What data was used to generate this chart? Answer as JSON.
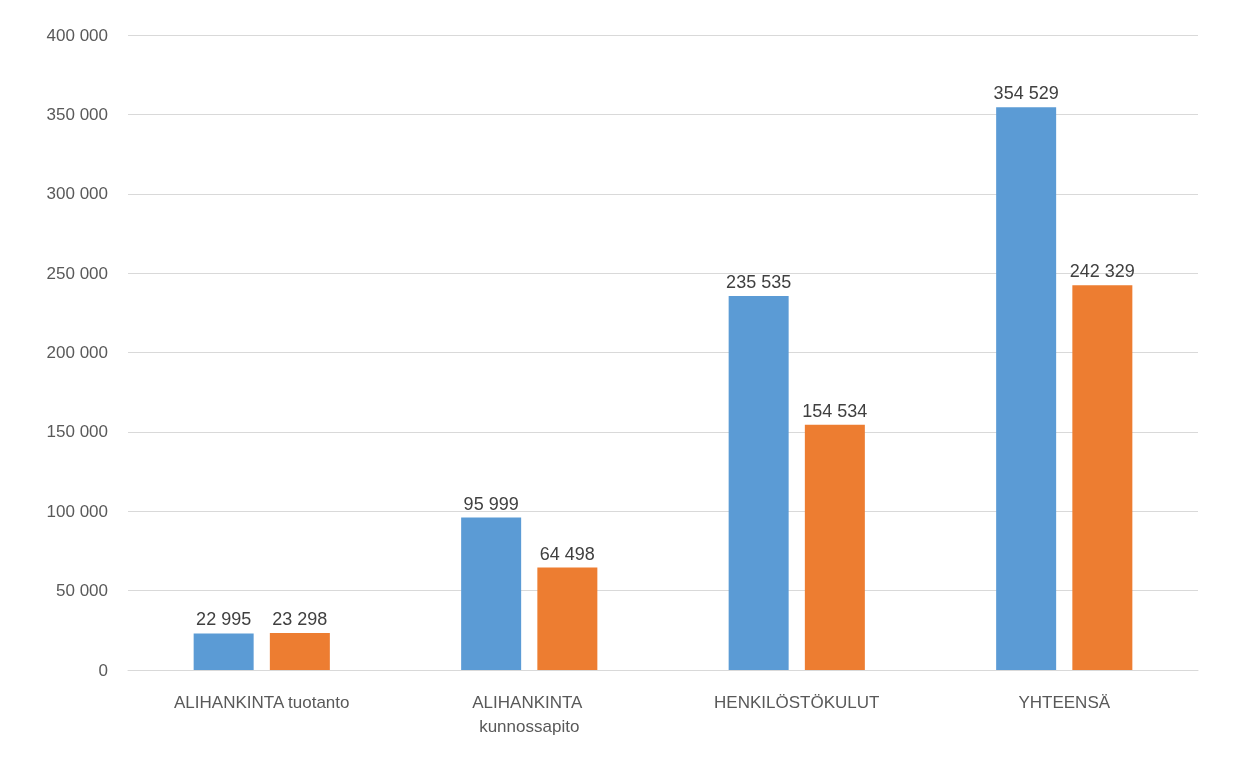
{
  "chart_data": {
    "type": "bar",
    "categories": [
      "ALIHANKINTA tuotanto",
      "ALIHANKINTA kunnossapito",
      "HENKILÖSTÖKULUT",
      "YHTEENSÄ"
    ],
    "series": [
      {
        "color": "#5b9bd5",
        "values": [
          22995,
          95999,
          235535,
          354529
        ],
        "value_labels": [
          "22 995",
          "95 999",
          "235 535",
          "354 529"
        ]
      },
      {
        "color": "#ed7d31",
        "values": [
          23298,
          64498,
          154534,
          242329
        ],
        "value_labels": [
          "23 298",
          "64 498",
          "154 534",
          "242 329"
        ]
      }
    ],
    "ylim": [
      0,
      400000
    ],
    "yticks": [
      {
        "value": 0,
        "label": "0"
      },
      {
        "value": 50000,
        "label": "50 000"
      },
      {
        "value": 100000,
        "label": "100 000"
      },
      {
        "value": 150000,
        "label": "150 000"
      },
      {
        "value": 200000,
        "label": "200 000"
      },
      {
        "value": 250000,
        "label": "250 000"
      },
      {
        "value": 300000,
        "label": "300 000"
      },
      {
        "value": 350000,
        "label": "350 000"
      },
      {
        "value": 400000,
        "label": "400 000"
      }
    ],
    "grid": "y"
  }
}
